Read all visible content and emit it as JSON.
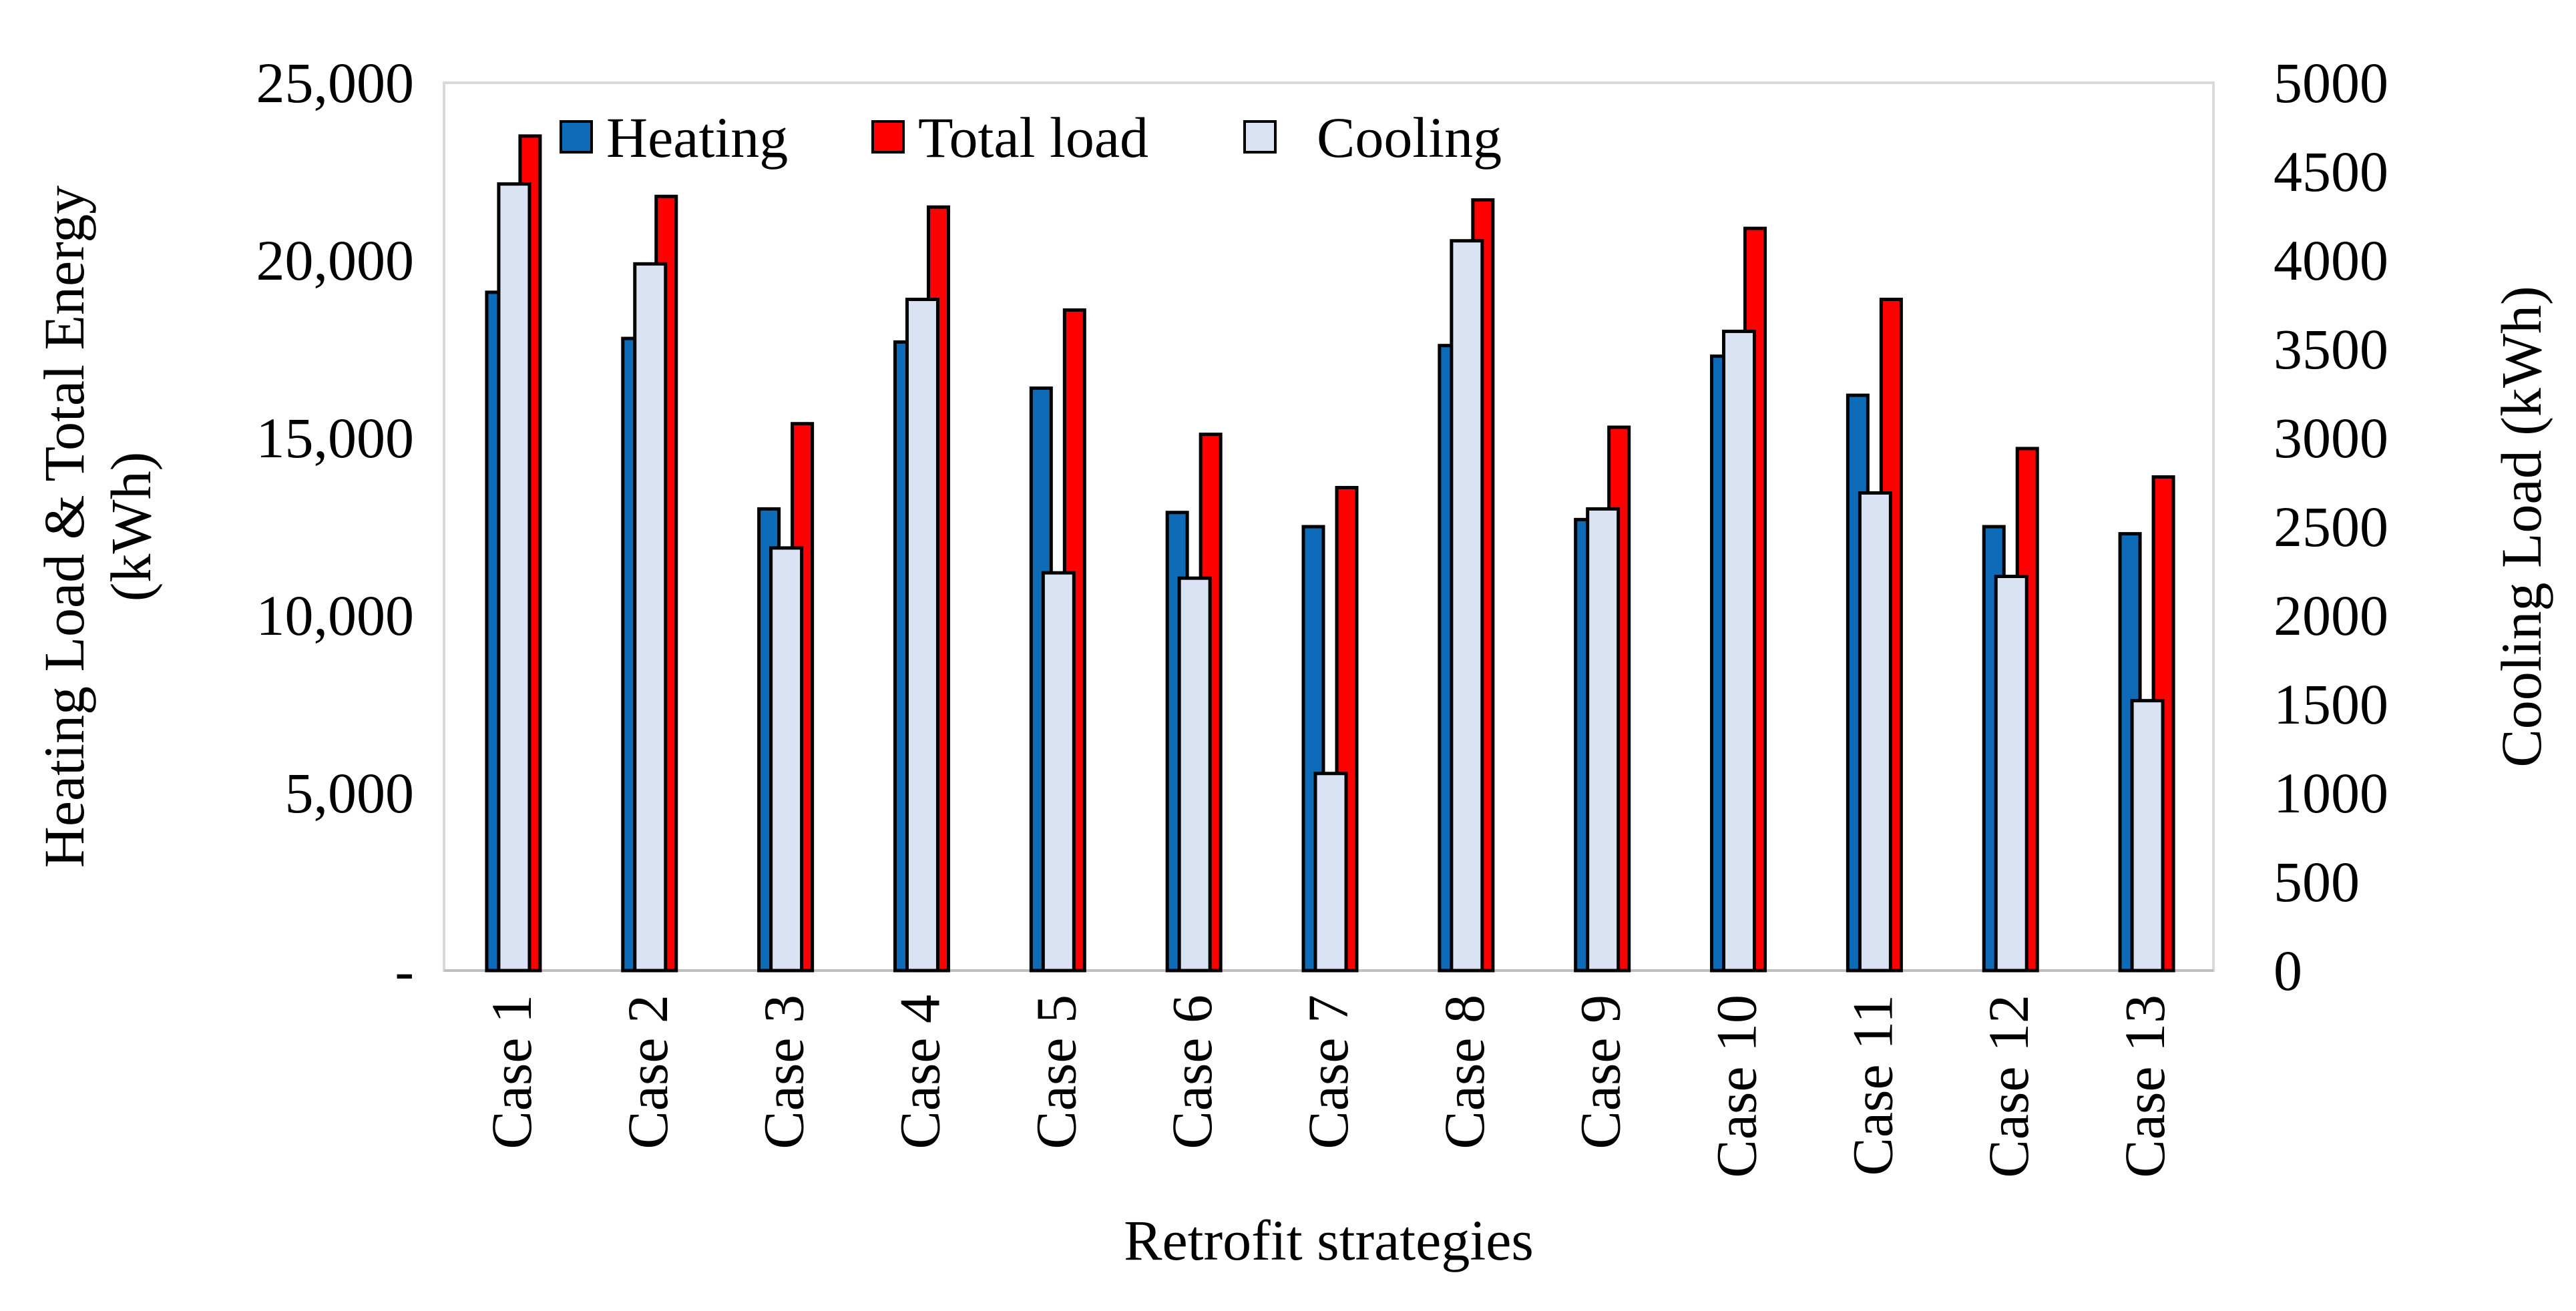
{
  "chart_data": {
    "type": "bar",
    "title": "",
    "xlabel": "Retrofit strategies",
    "ylabel_left": "Heating Load & Total Energy (kWh)",
    "ylabel_left_lines": [
      "Heating Load & Total Energy",
      "(kWh)"
    ],
    "ylabel_right": "Cooling Load (kWh)",
    "categories": [
      "Case 1",
      "Case 2",
      "Case 3",
      "Case 4",
      "Case 5",
      "Case 6",
      "Case 7",
      "Case 8",
      "Case 9",
      "Case 10",
      "Case 11",
      "Case 12",
      "Case 13"
    ],
    "ylim_left": [
      0,
      25000
    ],
    "ylim_right": [
      0,
      5000
    ],
    "yticks_left": [
      0,
      5000,
      10000,
      15000,
      20000,
      25000
    ],
    "yticks_left_labels": [
      "-",
      "5,000",
      "10,000",
      "15,000",
      "20,000",
      "25,000"
    ],
    "yticks_right": [
      0,
      500,
      1000,
      1500,
      2000,
      2500,
      3000,
      3500,
      4000,
      4500,
      5000
    ],
    "yticks_right_labels": [
      "0",
      "500",
      "1000",
      "1500",
      "2000",
      "2500",
      "3000",
      "3500",
      "4000",
      "4500",
      "5000"
    ],
    "series": [
      {
        "name": "Heating",
        "axis": "left",
        "color": "#0E6BB8",
        "values": [
          19100,
          17800,
          13000,
          17700,
          16400,
          12900,
          12500,
          17600,
          12700,
          17300,
          16200,
          12500,
          12300
        ]
      },
      {
        "name": "Total load",
        "axis": "left",
        "color": "#FF0000",
        "values": [
          23500,
          21800,
          15400,
          21500,
          18600,
          15100,
          13600,
          21700,
          15300,
          20900,
          18900,
          14700,
          13900
        ]
      },
      {
        "name": "Cooling",
        "axis": "right",
        "color": "#DAE3F3",
        "values": [
          4430,
          3980,
          2380,
          3780,
          2240,
          2210,
          1110,
          4110,
          2600,
          3600,
          2690,
          2220,
          1520
        ]
      }
    ],
    "legend": {
      "position": "top-left",
      "entries": [
        "Heating",
        "Total load",
        "Cooling"
      ]
    },
    "grid": false
  }
}
